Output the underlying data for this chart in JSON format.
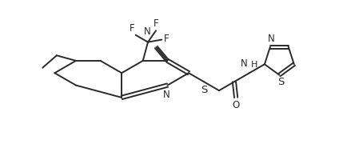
{
  "background_color": "#ffffff",
  "line_color": "#2a2a2a",
  "line_width": 1.4,
  "font_size": 8.5,
  "xlim": [
    0,
    100
  ],
  "ylim": [
    0,
    45
  ]
}
